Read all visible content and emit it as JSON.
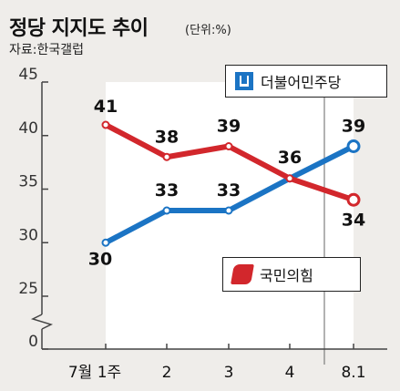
{
  "header": {
    "title": "정당 지지도 추이",
    "unit": "(단위:%)",
    "source": "자료:한국갤럽"
  },
  "chart_data": {
    "type": "line",
    "categories": [
      "7월 1주",
      "2",
      "3",
      "4",
      "8.1"
    ],
    "yticks": [
      0,
      25,
      30,
      35,
      40,
      45
    ],
    "ylim": [
      25,
      45
    ],
    "y_axis_break": true,
    "grid": false,
    "legend_placement": "inline",
    "series": [
      {
        "name": "더불어민주당",
        "color": "#1b74c4",
        "values": [
          30,
          33,
          33,
          36,
          39
        ]
      },
      {
        "name": "국민의힘",
        "color": "#d2272c",
        "values": [
          41,
          38,
          39,
          36,
          34
        ]
      }
    ]
  }
}
